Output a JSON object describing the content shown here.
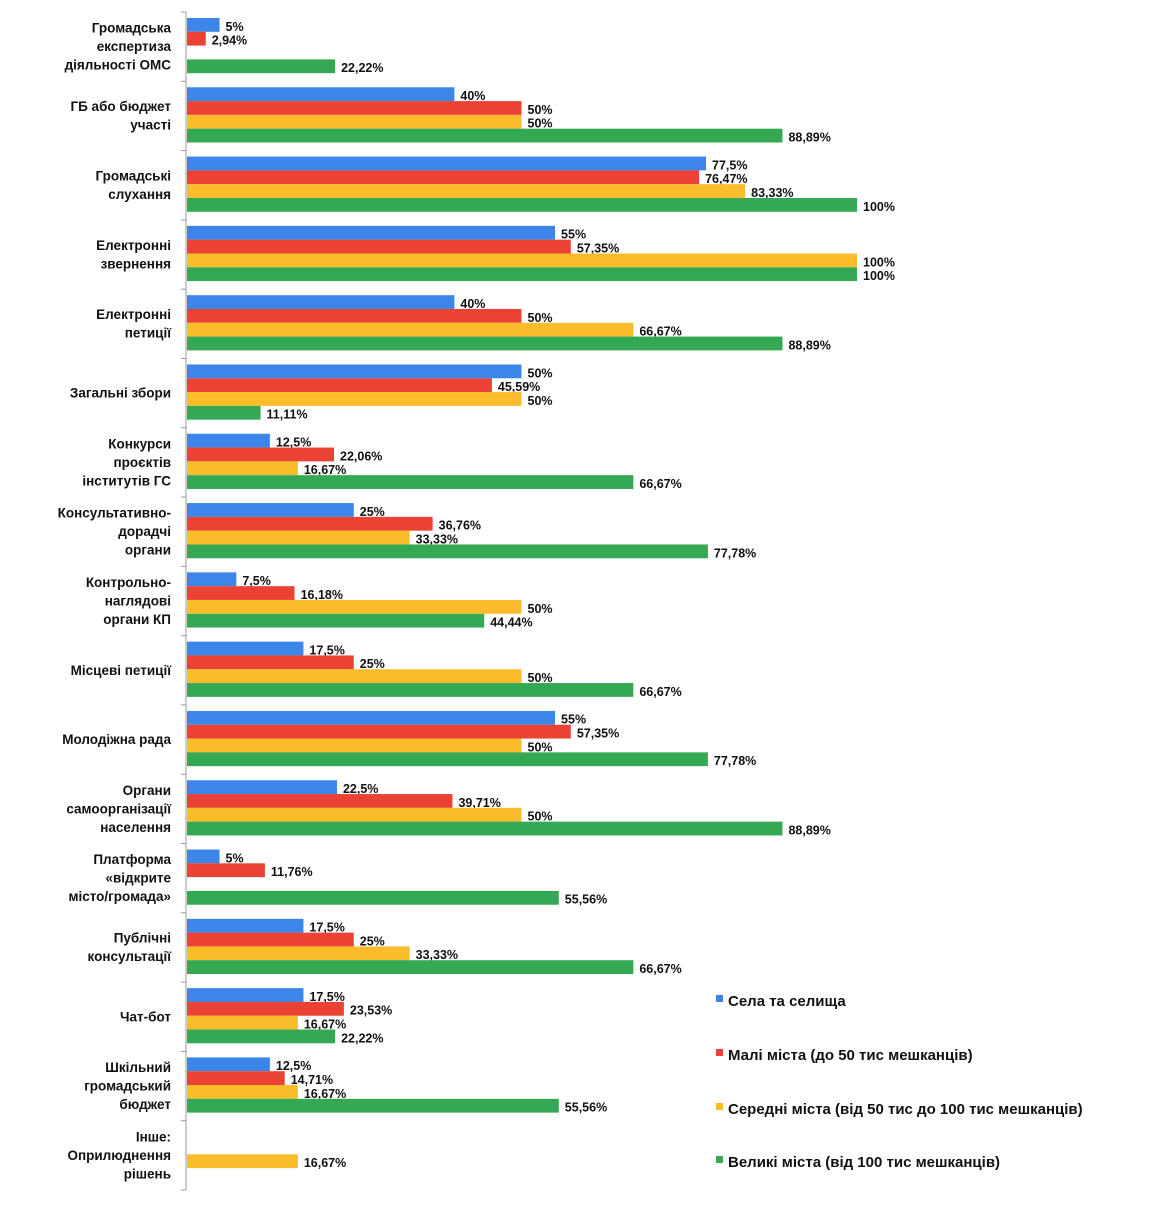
{
  "chart_data": {
    "type": "bar",
    "orientation": "horizontal",
    "unit": "%",
    "xlim": [
      0,
      100
    ],
    "grid": false,
    "legend_position": "bottom-right",
    "categories": [
      "Громадська\nекспертиза\nдіяльності ОМС",
      "ГБ або бюджет\nучасті",
      "Громадські\nслухання",
      "Електронні\nзвернення",
      "Електронні\nпетиції",
      "Загальні збори",
      "Конкурси\nпроєктів\nінститутів ГС",
      "Консультативно-\nдорадчі\nоргани",
      "Контрольно-\nнаглядові\nоргани КП",
      "Місцеві петиції",
      "Молодіжна рада",
      "Органи\nсамоорганізації\nнаселення",
      "Платформа\n«відкрите\nмісто/громада»",
      "Публічні\nконсультації",
      "Чат-бот",
      "Шкільний\nгромадський\nбюджет",
      "Інше:\nОприлюднення\nрішень"
    ],
    "series": [
      {
        "name": "Села та селища",
        "color": "#3b86e8",
        "values": [
          5,
          40,
          77.5,
          55,
          40,
          50,
          12.5,
          25,
          7.5,
          17.5,
          55,
          22.5,
          5,
          17.5,
          17.5,
          12.5,
          null
        ]
      },
      {
        "name": "Малі міста (до 50 тис мешканців)",
        "color": "#ea4335",
        "values": [
          2.94,
          50,
          76.47,
          57.35,
          50,
          45.59,
          22.06,
          36.76,
          16.18,
          25,
          57.35,
          39.71,
          11.76,
          25,
          23.53,
          14.71,
          null
        ]
      },
      {
        "name": "Середні міста (від 50 тис до 100 тис мешканців)",
        "color": "#fbbc2c",
        "values": [
          null,
          50,
          83.33,
          100,
          66.67,
          50,
          16.67,
          33.33,
          50,
          50,
          50,
          50,
          null,
          33.33,
          16.67,
          16.67,
          16.67
        ]
      },
      {
        "name": "Великі міста (від 100 тис мешканців)",
        "color": "#34a853",
        "values": [
          22.22,
          88.89,
          100,
          100,
          88.89,
          11.11,
          66.67,
          77.78,
          44.44,
          66.67,
          77.78,
          88.89,
          55.56,
          66.67,
          22.22,
          55.56,
          null
        ]
      }
    ]
  }
}
